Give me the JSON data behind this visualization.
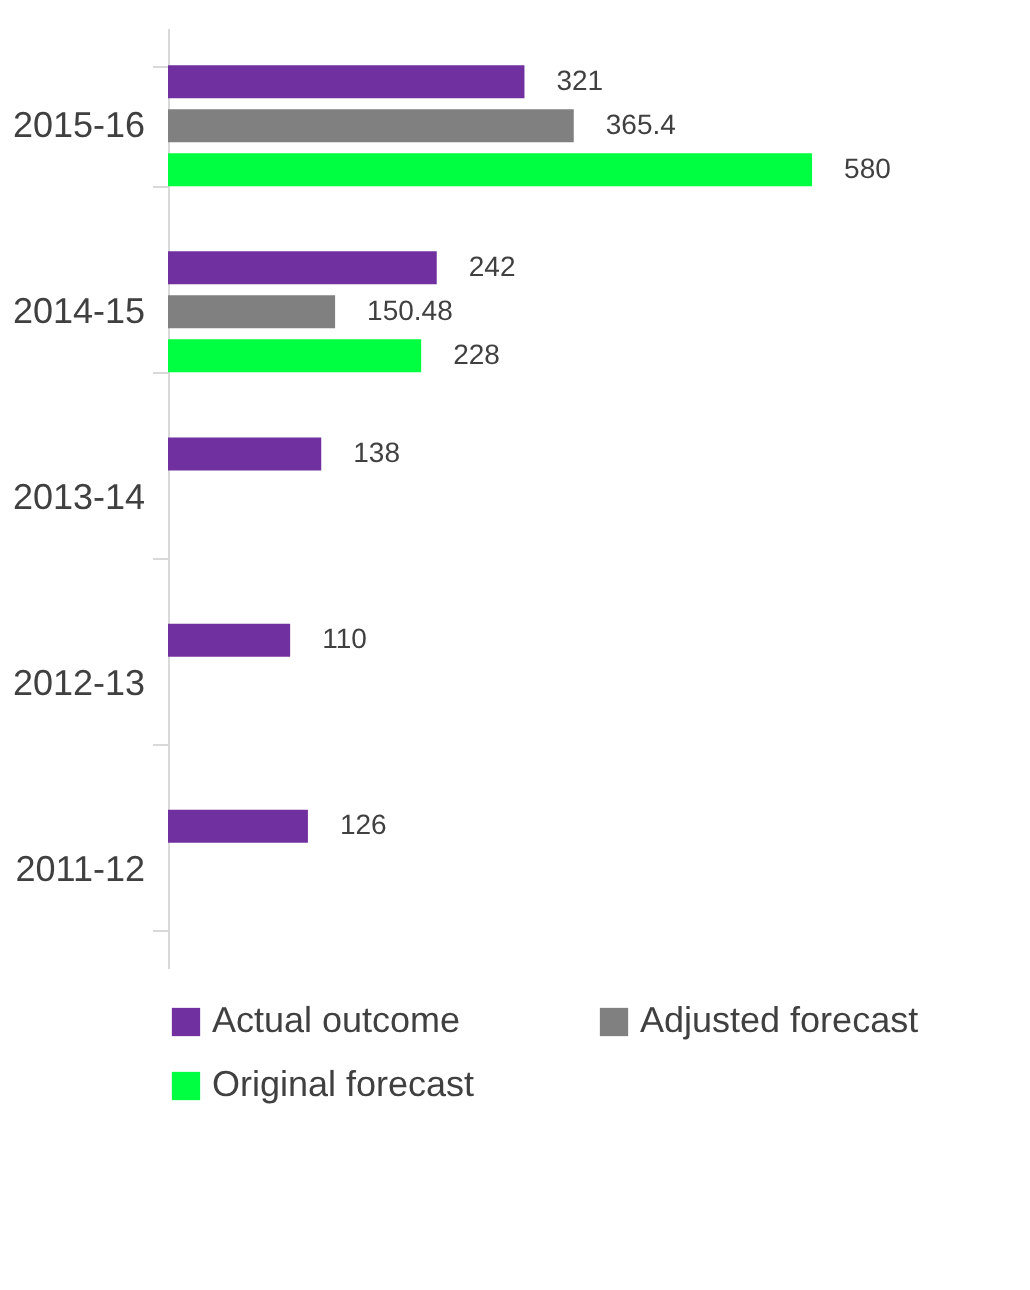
{
  "chart_data": {
    "type": "bar",
    "orientation": "horizontal",
    "categories": [
      "2015-16",
      "2014-15",
      "2013-14",
      "2012-13",
      "2011-12"
    ],
    "series": [
      {
        "name": "Actual outcome",
        "color": "#7030a0",
        "values": [
          321,
          242,
          138,
          110,
          126
        ]
      },
      {
        "name": "Adjusted forecast",
        "color": "#808080",
        "values": [
          365.4,
          150.48,
          null,
          null,
          null
        ]
      },
      {
        "name": "Original forecast",
        "color": "#00ff40",
        "values": [
          580,
          228,
          null,
          null,
          null
        ]
      }
    ],
    "data_labels": true,
    "legend": "bottom",
    "grid": false
  }
}
